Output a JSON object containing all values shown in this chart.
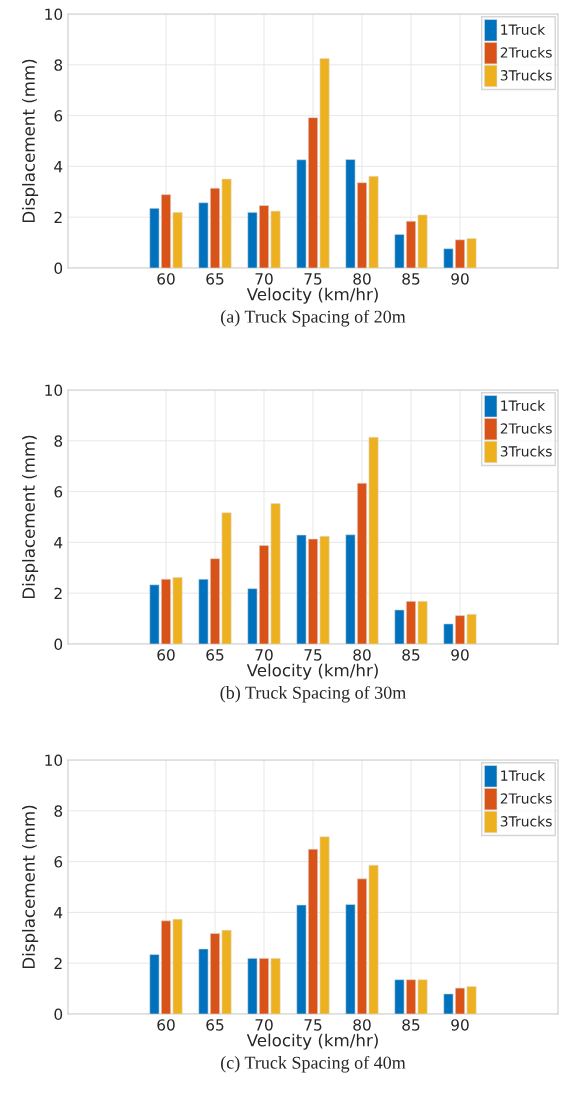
{
  "chart_data": [
    {
      "type": "bar",
      "x": [
        60,
        65,
        70,
        75,
        80,
        85,
        90
      ],
      "xlim": [
        50,
        100
      ],
      "xticks": [
        60,
        65,
        70,
        75,
        80,
        85,
        90
      ],
      "ylim": [
        0,
        10
      ],
      "yticks": [
        0,
        2,
        4,
        6,
        8,
        10
      ],
      "xlabel": "Velocity (km/hr)",
      "ylabel": "Displacement (mm)",
      "grid": true,
      "legend": "top right",
      "annotations": [
        "(a) Truck Spacing of 20m"
      ],
      "series": [
        {
          "name": "1Truck",
          "color": "#0072bd",
          "values": [
            2.35,
            2.57,
            2.19,
            4.26,
            4.27,
            1.32,
            0.76
          ]
        },
        {
          "name": "2Trucks",
          "color": "#d95319",
          "values": [
            2.89,
            3.14,
            2.46,
            5.92,
            3.36,
            1.84,
            1.11
          ]
        },
        {
          "name": "3Trucks",
          "color": "#edb120",
          "values": [
            2.19,
            3.5,
            2.24,
            8.25,
            3.61,
            2.09,
            1.16
          ]
        }
      ]
    },
    {
      "type": "bar",
      "x": [
        60,
        65,
        70,
        75,
        80,
        85,
        90
      ],
      "xlim": [
        50,
        100
      ],
      "xticks": [
        60,
        65,
        70,
        75,
        80,
        85,
        90
      ],
      "ylim": [
        0,
        10
      ],
      "yticks": [
        0,
        2,
        4,
        6,
        8,
        10
      ],
      "xlabel": "Velocity (km/hr)",
      "ylabel": "Displacement (mm)",
      "grid": true,
      "legend": "top right",
      "annotations": [
        "(b) Truck Spacing of 30m"
      ],
      "series": [
        {
          "name": "1Truck",
          "color": "#0072bd",
          "values": [
            2.33,
            2.55,
            2.18,
            4.29,
            4.3,
            1.34,
            0.79
          ]
        },
        {
          "name": "2Trucks",
          "color": "#d95319",
          "values": [
            2.55,
            3.36,
            3.88,
            4.13,
            6.33,
            1.68,
            1.12
          ]
        },
        {
          "name": "3Trucks",
          "color": "#edb120",
          "values": [
            2.62,
            5.17,
            5.53,
            4.24,
            8.14,
            1.68,
            1.17
          ]
        }
      ]
    },
    {
      "type": "bar",
      "x": [
        60,
        65,
        70,
        75,
        80,
        85,
        90
      ],
      "xlim": [
        50,
        100
      ],
      "xticks": [
        60,
        65,
        70,
        75,
        80,
        85,
        90
      ],
      "ylim": [
        0,
        10
      ],
      "yticks": [
        0,
        2,
        4,
        6,
        8,
        10
      ],
      "xlabel": "Velocity (km/hr)",
      "ylabel": "Displacement (mm)",
      "grid": true,
      "legend": "top right",
      "annotations": [
        "(c) Truck Spacing of 40m"
      ],
      "series": [
        {
          "name": "1Truck",
          "color": "#0072bd",
          "values": [
            2.34,
            2.56,
            2.19,
            4.29,
            4.31,
            1.35,
            0.79
          ]
        },
        {
          "name": "2Trucks",
          "color": "#d95319",
          "values": [
            3.67,
            3.17,
            2.19,
            6.49,
            5.32,
            1.35,
            1.02
          ]
        },
        {
          "name": "3Trucks",
          "color": "#edb120",
          "values": [
            3.73,
            3.3,
            2.19,
            6.98,
            5.86,
            1.35,
            1.08
          ]
        }
      ]
    }
  ]
}
